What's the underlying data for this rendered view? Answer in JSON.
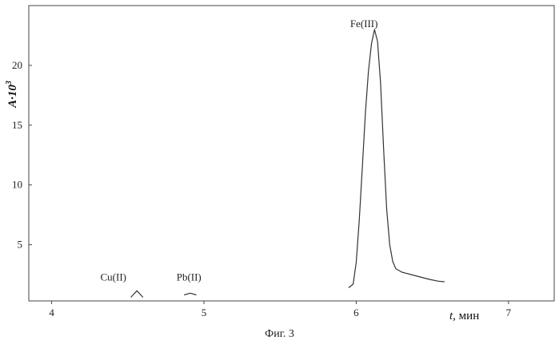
{
  "chart_data": {
    "type": "line",
    "title": "",
    "xlabel_var": "t",
    "xlabel_unit": ", мин",
    "ylabel_main": "A·10",
    "ylabel_sup": "3",
    "xlim": [
      3.85,
      7.3
    ],
    "ylim": [
      0.3,
      25.0
    ],
    "x_ticks": [
      4,
      5,
      6,
      7
    ],
    "y_ticks": [
      5,
      10,
      15,
      20
    ],
    "grid": false,
    "legend": "none",
    "series": [
      {
        "color": "#333333",
        "x": [
          5.95,
          5.98,
          6.0,
          6.02,
          6.04,
          6.06,
          6.08,
          6.1,
          6.12,
          6.14,
          6.16,
          6.18,
          6.2,
          6.22,
          6.24,
          6.26,
          6.3,
          6.36,
          6.42,
          6.48,
          6.54,
          6.58
        ],
        "y": [
          1.4,
          1.7,
          3.5,
          7.0,
          11.5,
          16.0,
          19.5,
          21.8,
          23.0,
          22.0,
          18.5,
          13.0,
          8.0,
          5.0,
          3.6,
          3.0,
          2.7,
          2.5,
          2.3,
          2.1,
          1.95,
          1.9
        ]
      },
      {
        "color": "#333333",
        "x": [
          4.52,
          4.56,
          4.6
        ],
        "y": [
          0.6,
          1.15,
          0.6
        ]
      },
      {
        "color": "#333333",
        "x": [
          4.87,
          4.91,
          4.95
        ],
        "y": [
          0.8,
          0.95,
          0.8
        ]
      }
    ],
    "annotations": [
      {
        "text": "Fe(III)",
        "x": 5.96,
        "y": 23.2
      },
      {
        "text": "Cu(II)",
        "x": 4.32,
        "y": 2.0
      },
      {
        "text": "Pb(II)",
        "x": 4.82,
        "y": 2.0
      }
    ]
  },
  "caption": "Фиг. 3"
}
